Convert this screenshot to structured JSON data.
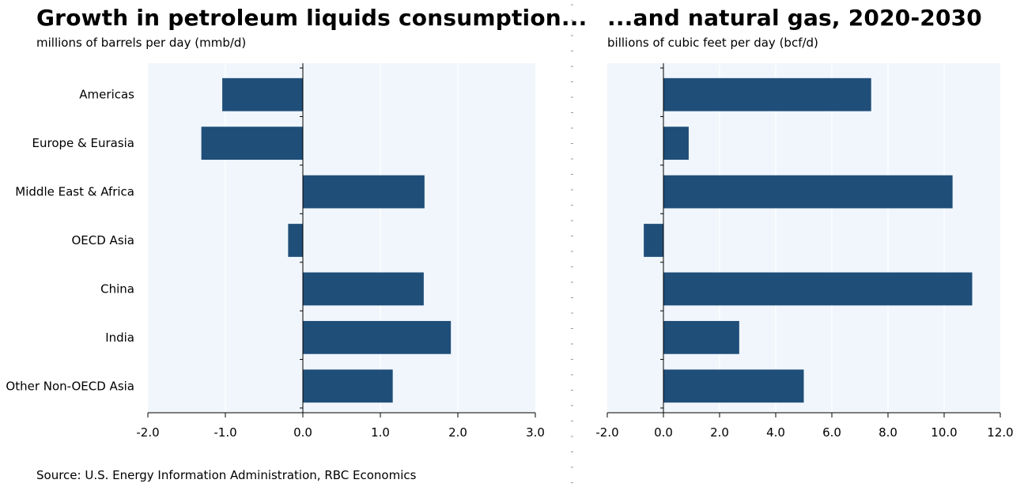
{
  "chart_data": [
    {
      "type": "bar",
      "orientation": "horizontal",
      "title": "Growth in petroleum liquids consumption...",
      "subtitle": "millions of barrels per day (mmb/d)",
      "categories": [
        "Americas",
        "Europe & Eurasia",
        "Middle East & Africa",
        "OECD Asia",
        "China",
        "India",
        "Other Non-OECD Asia"
      ],
      "values": [
        -1.04,
        -1.31,
        1.57,
        -0.19,
        1.56,
        1.91,
        1.16
      ],
      "xlim": [
        -2.0,
        3.0
      ],
      "xticks": [
        "-2.0",
        "-1.0",
        "0.0",
        "1.0",
        "2.0",
        "3.0"
      ],
      "grid": true,
      "bar_color": "#1f4e79",
      "plot_background": "#f0f6fc"
    },
    {
      "type": "bar",
      "orientation": "horizontal",
      "title": "...and natural gas, 2020-2030",
      "subtitle": "billions of cubic feet per day (bcf/d)",
      "categories": [
        "Americas",
        "Europe & Eurasia",
        "Middle East & Africa",
        "OECD Asia",
        "China",
        "India",
        "Other Non-OECD Asia"
      ],
      "values": [
        7.4,
        0.9,
        10.3,
        -0.7,
        11.0,
        2.7,
        5.0
      ],
      "xlim": [
        -2.0,
        12.0
      ],
      "xticks": [
        "-2.0",
        "0.0",
        "2.0",
        "4.0",
        "6.0",
        "8.0",
        "10.0",
        "12.0"
      ],
      "grid": true,
      "bar_color": "#1f4e79",
      "plot_background": "#f0f6fc"
    }
  ],
  "source": "Source: U.S. Energy Information Administration, RBC Economics"
}
